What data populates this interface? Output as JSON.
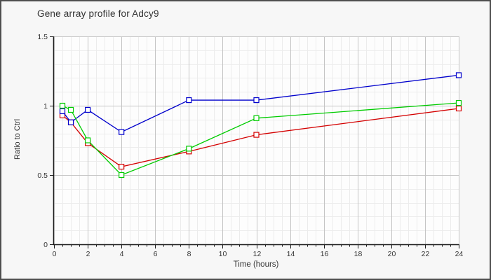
{
  "chart_data": {
    "type": "line",
    "title": "Gene array profile for Adcy9",
    "xlabel": "Time (hours)",
    "ylabel": "Ratio to Ctrl",
    "x": [
      0.5,
      1,
      2,
      4,
      8,
      12,
      24
    ],
    "series": [
      {
        "name": "red-series",
        "color": "#d40000",
        "values": [
          0.93,
          0.88,
          0.73,
          0.56,
          0.67,
          0.79,
          0.98
        ]
      },
      {
        "name": "blue-series",
        "color": "#0000cc",
        "values": [
          0.96,
          0.88,
          0.97,
          0.81,
          1.04,
          1.04,
          1.22
        ]
      },
      {
        "name": "green-series",
        "color": "#00cc00",
        "values": [
          1.0,
          0.97,
          0.75,
          0.5,
          0.69,
          0.91,
          1.02
        ]
      }
    ],
    "xlim": [
      0,
      24
    ],
    "ylim": [
      0,
      1.5
    ],
    "xticks": [
      0,
      2,
      4,
      6,
      8,
      10,
      12,
      14,
      16,
      18,
      20,
      22,
      24
    ],
    "yticks": [
      0,
      0.5,
      1,
      1.5
    ],
    "ytick_labels": [
      "0",
      "0.5",
      "1",
      "1.5"
    ],
    "minor_x_step": 0.5,
    "minor_y_step": 0.1,
    "grid": "on",
    "legend": "none",
    "marker": "open-square",
    "colors": {
      "plot_background": "#fdfdfd",
      "outer_background": "#f7f7f7",
      "minor_grid": "#ececec",
      "major_grid": "#c4c4c4",
      "axis": "#1a1a1a",
      "text": "#333333"
    }
  }
}
